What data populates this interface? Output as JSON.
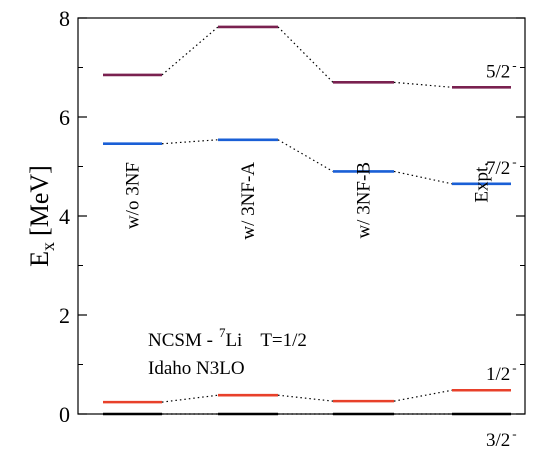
{
  "chart_data": {
    "type": "level-scheme",
    "ylabel": "E",
    "ylabel_sub": "x",
    "ylabel_unit": "[MeV]",
    "ylim": [
      0,
      8
    ],
    "yticks": [
      "0",
      "2",
      "4",
      "6",
      "8"
    ],
    "columns": [
      "w/o 3NF",
      "w/ 3NF-A",
      "w/ 3NF-B",
      "Expt."
    ],
    "series": [
      {
        "name": "3/2",
        "parity": "-",
        "color": "#000000",
        "values": [
          0.0,
          0.0,
          0.0,
          0.0
        ]
      },
      {
        "name": "1/2",
        "parity": "-",
        "color": "#e8402a",
        "values": [
          0.24,
          0.38,
          0.26,
          0.48
        ]
      },
      {
        "name": "7/2",
        "parity": "-",
        "color": "#1a5fd6",
        "values": [
          5.46,
          5.54,
          4.9,
          4.65
        ]
      },
      {
        "name": "5/2",
        "parity": "-",
        "color": "#7a2150",
        "values": [
          6.85,
          7.82,
          6.7,
          6.6
        ]
      }
    ],
    "annotation": {
      "line1_prefix": "NCSM -",
      "mass_number": "7",
      "element": "Li",
      "isospin": "T=1/2",
      "line2": "Idaho N3LO"
    }
  }
}
